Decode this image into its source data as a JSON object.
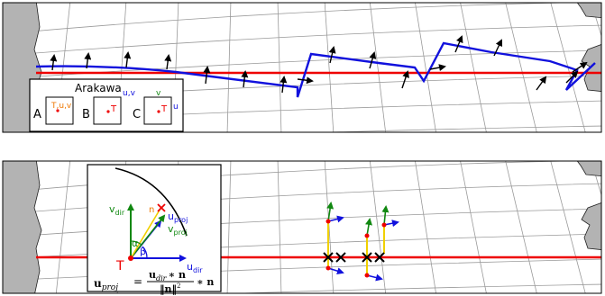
{
  "top_panel": {
    "legend": {
      "title": "Arakawa",
      "letters": [
        "A",
        "B",
        "C"
      ],
      "a_point": "T,u,v",
      "b_point": "T",
      "b_corner": "u,v",
      "c_point": "T",
      "c_top": "v",
      "c_right": "u"
    }
  },
  "bottom_panel": {
    "inset": {
      "v_dir_main": "v",
      "v_dir_sub": "dir",
      "u_dir_main": "u",
      "u_dir_sub": "dir",
      "u_proj_main": "u",
      "u_proj_sub": "proj",
      "v_proj_main": "v",
      "v_proj_sub": "proj",
      "n_label": "n",
      "alpha": "α",
      "beta": "β",
      "t_label": "T",
      "formula_lhs_main": "u",
      "formula_lhs_sub": "proj",
      "formula_eq": "=",
      "formula_num_main": "u",
      "formula_num_sub": "dir",
      "formula_num_tail": "∗ n",
      "formula_den": "‖n‖",
      "formula_den_sup": "2",
      "formula_tail": "∗ n"
    }
  },
  "colors": {
    "red": "#ee0000",
    "blue": "#1111dd",
    "green": "#118811",
    "yellow": "#f0d000",
    "land": "#b3b3b3"
  }
}
